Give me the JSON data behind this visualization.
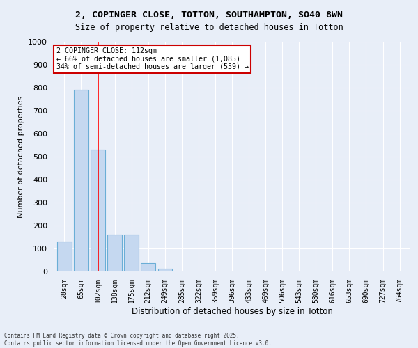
{
  "title": "2, COPINGER CLOSE, TOTTON, SOUTHAMPTON, SO40 8WN",
  "subtitle": "Size of property relative to detached houses in Totton",
  "xlabel": "Distribution of detached houses by size in Totton",
  "ylabel": "Number of detached properties",
  "bar_labels": [
    "28sqm",
    "65sqm",
    "102sqm",
    "138sqm",
    "175sqm",
    "212sqm",
    "249sqm",
    "285sqm",
    "322sqm",
    "359sqm",
    "396sqm",
    "433sqm",
    "469sqm",
    "506sqm",
    "543sqm",
    "580sqm",
    "616sqm",
    "653sqm",
    "690sqm",
    "727sqm",
    "764sqm"
  ],
  "bar_values": [
    130,
    790,
    530,
    160,
    160,
    37,
    12,
    0,
    0,
    0,
    0,
    0,
    0,
    0,
    0,
    0,
    0,
    0,
    0,
    0,
    0
  ],
  "bar_color": "#c5d8f0",
  "bar_edge_color": "#6aaed6",
  "background_color": "#e8eef8",
  "grid_color": "#ffffff",
  "red_line_x": 2,
  "annotation_text": "2 COPINGER CLOSE: 112sqm\n← 66% of detached houses are smaller (1,085)\n34% of semi-detached houses are larger (559) →",
  "annotation_box_color": "#ffffff",
  "annotation_box_edge": "#cc0000",
  "ylim": [
    0,
    1000
  ],
  "yticks": [
    0,
    100,
    200,
    300,
    400,
    500,
    600,
    700,
    800,
    900,
    1000
  ],
  "footer_line1": "Contains HM Land Registry data © Crown copyright and database right 2025.",
  "footer_line2": "Contains public sector information licensed under the Open Government Licence v3.0."
}
